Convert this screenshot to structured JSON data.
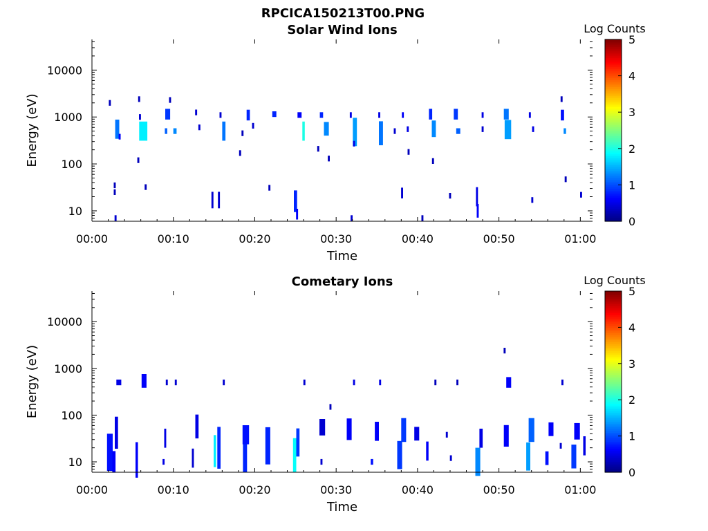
{
  "figure_title": "RPCICA150213T00.PNG",
  "colorbar_colors": [
    "#00007f",
    "#0000ff",
    "#007fff",
    "#00ffff",
    "#7fff7f",
    "#ffff00",
    "#ff7f00",
    "#ff0000",
    "#7f0000"
  ],
  "chart_data": [
    {
      "type": "heatmap",
      "title": "Solar Wind Ions",
      "xlabel": "Time",
      "ylabel": "Energy (eV)",
      "x_ticks": [
        "00:00",
        "00:10",
        "00:20",
        "00:30",
        "00:40",
        "00:50",
        "01:00"
      ],
      "x_range_min": [
        0,
        61.5
      ],
      "y_ticks": [
        "10",
        "100",
        "1000",
        "10000"
      ],
      "y_range_ev": [
        6,
        45000
      ],
      "y_scale": "log",
      "colorbar": {
        "label": "Log Counts",
        "ticks": [
          "0",
          "1",
          "2",
          "3",
          "4",
          "5"
        ],
        "range": [
          0,
          5
        ],
        "colormap": "jet"
      },
      "bursts": [
        {
          "t": 2.2,
          "e": 2000,
          "c": 0.3
        },
        {
          "t": 3.1,
          "e": 550,
          "c": 1.2,
          "dt": 0.5,
          "ed": 1.6
        },
        {
          "t": 3.4,
          "e": 380,
          "c": 0.6
        },
        {
          "t": 5.8,
          "e": 2400,
          "c": 0.3
        },
        {
          "t": 5.9,
          "e": 1000,
          "c": 0.4
        },
        {
          "t": 6.3,
          "e": 500,
          "c": 1.8,
          "dt": 1.0,
          "ed": 1.6
        },
        {
          "t": 9.3,
          "e": 1150,
          "c": 0.9,
          "dt": 0.6,
          "ed": 1.3
        },
        {
          "t": 9.1,
          "e": 500,
          "c": 1.1,
          "dt": 0.3
        },
        {
          "t": 9.6,
          "e": 2300,
          "c": 0.3
        },
        {
          "t": 10.2,
          "e": 500,
          "c": 1.3,
          "dt": 0.4
        },
        {
          "t": 12.8,
          "e": 1250,
          "c": 0.4
        },
        {
          "t": 13.2,
          "e": 600,
          "c": 0.4
        },
        {
          "t": 15.8,
          "e": 1100,
          "c": 0.4
        },
        {
          "t": 16.2,
          "e": 500,
          "c": 1.2,
          "dt": 0.4,
          "ed": 1.6
        },
        {
          "t": 18.5,
          "e": 450,
          "c": 0.3
        },
        {
          "t": 19.2,
          "e": 1100,
          "c": 0.8,
          "dt": 0.4,
          "ed": 1.3
        },
        {
          "t": 19.8,
          "e": 650,
          "c": 0.4
        },
        {
          "t": 22.4,
          "e": 1150,
          "c": 0.8,
          "dt": 0.5
        },
        {
          "t": 25.5,
          "e": 1100,
          "c": 0.6,
          "dt": 0.5
        },
        {
          "t": 26.0,
          "e": 500,
          "c": 2.0,
          "dt": 0.3,
          "ed": 1.6
        },
        {
          "t": 28.2,
          "e": 1100,
          "c": 0.8,
          "dt": 0.4
        },
        {
          "t": 28.8,
          "e": 560,
          "c": 1.3,
          "dt": 0.6,
          "ed": 1.4
        },
        {
          "t": 31.8,
          "e": 1100,
          "c": 0.5
        },
        {
          "t": 32.3,
          "e": 480,
          "c": 1.4,
          "dt": 0.5,
          "ed": 2.0
        },
        {
          "t": 35.3,
          "e": 1100,
          "c": 0.5
        },
        {
          "t": 35.5,
          "e": 450,
          "c": 1.2,
          "dt": 0.5,
          "ed": 1.8
        },
        {
          "t": 37.2,
          "e": 500,
          "c": 0.4
        },
        {
          "t": 38.2,
          "e": 1100,
          "c": 0.6
        },
        {
          "t": 38.8,
          "e": 550,
          "c": 0.5
        },
        {
          "t": 41.6,
          "e": 1150,
          "c": 0.8,
          "dt": 0.4,
          "ed": 1.3
        },
        {
          "t": 42.0,
          "e": 560,
          "c": 1.3,
          "dt": 0.5,
          "ed": 1.5
        },
        {
          "t": 44.7,
          "e": 1150,
          "c": 0.9,
          "dt": 0.5,
          "ed": 1.3
        },
        {
          "t": 45.0,
          "e": 500,
          "c": 1.1,
          "dt": 0.5
        },
        {
          "t": 48.0,
          "e": 1100,
          "c": 0.5
        },
        {
          "t": 48.0,
          "e": 550,
          "c": 0.4
        },
        {
          "t": 50.9,
          "e": 1150,
          "c": 1.2,
          "dt": 0.6,
          "ed": 1.3
        },
        {
          "t": 51.1,
          "e": 540,
          "c": 1.4,
          "dt": 0.8,
          "ed": 1.6
        },
        {
          "t": 53.8,
          "e": 1100,
          "c": 0.5
        },
        {
          "t": 54.2,
          "e": 550,
          "c": 0.5
        },
        {
          "t": 57.8,
          "e": 1100,
          "c": 0.7,
          "dt": 0.4,
          "ed": 1.3
        },
        {
          "t": 58.1,
          "e": 500,
          "c": 1.3,
          "dt": 0.3
        },
        {
          "t": 57.7,
          "e": 2400,
          "c": 0.3
        },
        {
          "t": 18.2,
          "e": 170,
          "c": 0.3
        },
        {
          "t": 27.8,
          "e": 210,
          "c": 0.3
        },
        {
          "t": 29.1,
          "e": 130,
          "c": 0.3
        },
        {
          "t": 32.2,
          "e": 270,
          "c": 0.5
        },
        {
          "t": 38.9,
          "e": 180,
          "c": 0.3
        },
        {
          "t": 41.9,
          "e": 115,
          "c": 0.3
        },
        {
          "t": 5.7,
          "e": 120,
          "c": 0.3
        },
        {
          "t": 2.8,
          "e": 35,
          "c": 0.3
        },
        {
          "t": 2.8,
          "e": 25,
          "c": 0.3
        },
        {
          "t": 6.6,
          "e": 32,
          "c": 0.3
        },
        {
          "t": 14.8,
          "e": 17,
          "c": 0.4,
          "ed": 1.5
        },
        {
          "t": 15.6,
          "e": 17,
          "c": 0.4,
          "ed": 1.5
        },
        {
          "t": 21.8,
          "e": 31,
          "c": 0.3
        },
        {
          "t": 25.0,
          "e": 16,
          "c": 0.8,
          "dt": 0.4,
          "ed": 1.7
        },
        {
          "t": 25.2,
          "e": 8.5,
          "c": 0.6,
          "ed": 1.3
        },
        {
          "t": 38.1,
          "e": 24,
          "c": 0.4,
          "ed": 1.3
        },
        {
          "t": 44.0,
          "e": 21,
          "c": 0.3
        },
        {
          "t": 47.3,
          "e": 20,
          "c": 0.5,
          "ed": 1.6
        },
        {
          "t": 47.4,
          "e": 10,
          "c": 0.6,
          "ed": 1.4
        },
        {
          "t": 54.1,
          "e": 17,
          "c": 0.4
        },
        {
          "t": 58.2,
          "e": 47,
          "c": 0.3
        },
        {
          "t": 60.1,
          "e": 22,
          "c": 0.4
        },
        {
          "t": 2.9,
          "e": 7,
          "c": 0.4
        },
        {
          "t": 31.9,
          "e": 7,
          "c": 0.4
        },
        {
          "t": 40.6,
          "e": 7,
          "c": 0.3
        }
      ]
    },
    {
      "type": "heatmap",
      "title": "Cometary Ions",
      "xlabel": "Time",
      "ylabel": "Energy (eV)",
      "x_ticks": [
        "00:00",
        "00:10",
        "00:20",
        "00:30",
        "00:40",
        "00:50",
        "01:00"
      ],
      "x_range_min": [
        0,
        61.5
      ],
      "y_ticks": [
        "10",
        "100",
        "1000",
        "10000"
      ],
      "y_range_ev": [
        6,
        45000
      ],
      "y_scale": "log",
      "colorbar": {
        "label": "Log Counts",
        "ticks": [
          "0",
          "1",
          "2",
          "3",
          "4",
          "5"
        ],
        "range": [
          0,
          5
        ],
        "colormap": "jet"
      },
      "bursts": [
        {
          "t": 3.3,
          "e": 500,
          "c": 0.5,
          "dt": 0.6
        },
        {
          "t": 6.4,
          "e": 540,
          "c": 0.6,
          "dt": 0.6,
          "ed": 1.4
        },
        {
          "t": 9.2,
          "e": 500,
          "c": 0.4
        },
        {
          "t": 10.3,
          "e": 500,
          "c": 0.4
        },
        {
          "t": 16.2,
          "e": 500,
          "c": 0.4
        },
        {
          "t": 26.1,
          "e": 500,
          "c": 0.4
        },
        {
          "t": 32.2,
          "e": 500,
          "c": 0.5
        },
        {
          "t": 35.4,
          "e": 500,
          "c": 0.5
        },
        {
          "t": 42.2,
          "e": 500,
          "c": 0.3
        },
        {
          "t": 44.9,
          "e": 500,
          "c": 0.3
        },
        {
          "t": 51.2,
          "e": 500,
          "c": 0.6,
          "dt": 0.6,
          "ed": 1.3
        },
        {
          "t": 57.8,
          "e": 500,
          "c": 0.4
        },
        {
          "t": 50.7,
          "e": 2400,
          "c": 0.3
        },
        {
          "t": 29.3,
          "e": 150,
          "c": 0.3
        },
        {
          "t": 2.2,
          "e": 16,
          "c": 0.7,
          "dt": 0.7,
          "ed": 2.5
        },
        {
          "t": 2.7,
          "e": 10,
          "c": 0.6,
          "dt": 0.4,
          "ed": 1.7
        },
        {
          "t": 3.0,
          "e": 42,
          "c": 0.5,
          "dt": 0.4,
          "ed": 2.2
        },
        {
          "t": 5.5,
          "e": 11,
          "c": 0.6,
          "dt": 0.3,
          "ed": 2.4
        },
        {
          "t": 8.8,
          "e": 10,
          "c": 0.5
        },
        {
          "t": 9.0,
          "e": 32,
          "c": 0.5,
          "ed": 1.6
        },
        {
          "t": 12.4,
          "e": 12,
          "c": 0.4,
          "ed": 1.6
        },
        {
          "t": 12.9,
          "e": 57,
          "c": 0.5,
          "dt": 0.4,
          "ed": 1.8
        },
        {
          "t": 15.1,
          "e": 17,
          "c": 1.8,
          "dt": 0.3,
          "ed": 2.2
        },
        {
          "t": 15.6,
          "e": 20,
          "c": 0.8,
          "dt": 0.4,
          "ed": 2.8
        },
        {
          "t": 18.8,
          "e": 14,
          "c": 0.8,
          "dt": 0.5,
          "ed": 2.3
        },
        {
          "t": 18.9,
          "e": 38,
          "c": 0.7,
          "dt": 0.8,
          "ed": 1.6
        },
        {
          "t": 21.6,
          "e": 22,
          "c": 0.8,
          "dt": 0.6,
          "ed": 2.5
        },
        {
          "t": 24.9,
          "e": 14,
          "c": 1.9,
          "dt": 0.4,
          "ed": 2.3
        },
        {
          "t": 25.3,
          "e": 26,
          "c": 0.9,
          "dt": 0.4,
          "ed": 2.0
        },
        {
          "t": 28.2,
          "e": 10,
          "c": 0.4
        },
        {
          "t": 28.3,
          "e": 55,
          "c": 0.4,
          "dt": 0.7,
          "ed": 1.5
        },
        {
          "t": 31.6,
          "e": 50,
          "c": 0.6,
          "dt": 0.6,
          "ed": 1.7
        },
        {
          "t": 34.4,
          "e": 10,
          "c": 0.7,
          "dt": 0.3
        },
        {
          "t": 35.0,
          "e": 45,
          "c": 0.6,
          "dt": 0.5,
          "ed": 1.6
        },
        {
          "t": 37.8,
          "e": 14,
          "c": 0.9,
          "dt": 0.6,
          "ed": 2.0
        },
        {
          "t": 38.3,
          "e": 48,
          "c": 0.9,
          "dt": 0.6,
          "ed": 1.8
        },
        {
          "t": 39.9,
          "e": 40,
          "c": 0.5,
          "dt": 0.6,
          "ed": 1.4
        },
        {
          "t": 41.2,
          "e": 17,
          "c": 0.6,
          "dt": 0.3,
          "ed": 1.6
        },
        {
          "t": 43.6,
          "e": 38,
          "c": 0.4
        },
        {
          "t": 44.1,
          "e": 12,
          "c": 0.4
        },
        {
          "t": 47.4,
          "e": 10,
          "c": 1.3,
          "dt": 0.6,
          "ed": 2.0
        },
        {
          "t": 47.8,
          "e": 32,
          "c": 0.5,
          "dt": 0.4,
          "ed": 1.6
        },
        {
          "t": 50.9,
          "e": 36,
          "c": 0.6,
          "dt": 0.6,
          "ed": 1.7
        },
        {
          "t": 53.6,
          "e": 13,
          "c": 1.4,
          "dt": 0.5,
          "ed": 2.0
        },
        {
          "t": 54.0,
          "e": 48,
          "c": 1.1,
          "dt": 0.7,
          "ed": 1.8
        },
        {
          "t": 55.9,
          "e": 12,
          "c": 0.7,
          "dt": 0.4,
          "ed": 1.4
        },
        {
          "t": 56.4,
          "e": 50,
          "c": 0.6,
          "dt": 0.6,
          "ed": 1.4
        },
        {
          "t": 59.2,
          "e": 13,
          "c": 0.9,
          "dt": 0.6,
          "ed": 1.8
        },
        {
          "t": 59.6,
          "e": 45,
          "c": 0.6,
          "dt": 0.7,
          "ed": 1.5
        },
        {
          "t": 60.5,
          "e": 22,
          "c": 0.5,
          "dt": 0.3,
          "ed": 1.6
        },
        {
          "t": 57.6,
          "e": 22,
          "c": 0.4
        }
      ]
    }
  ]
}
